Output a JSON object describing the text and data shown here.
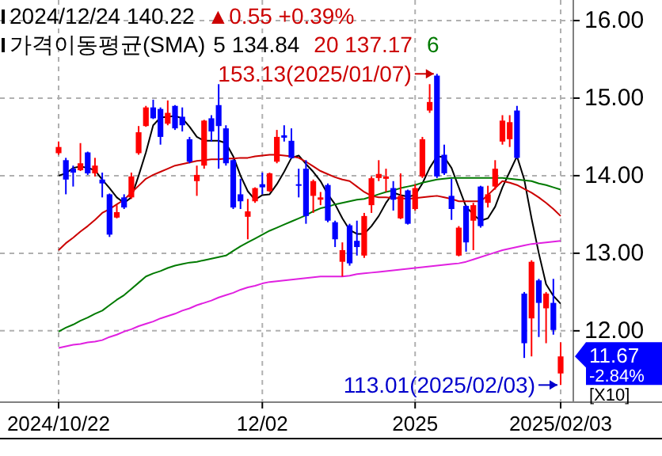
{
  "chart_data": {
    "type": "candlestick",
    "categories": [
      "2024/10/22",
      null,
      null,
      null,
      null,
      null,
      null,
      null,
      null,
      null,
      null,
      null,
      null,
      null,
      null,
      null,
      null,
      null,
      null,
      null,
      null,
      null,
      null,
      null,
      null,
      null,
      null,
      null,
      "12/02",
      null,
      null,
      null,
      null,
      null,
      null,
      null,
      null,
      null,
      null,
      null,
      null,
      null,
      null,
      null,
      null,
      null,
      null,
      null,
      null,
      "2025",
      null,
      null,
      null,
      null,
      null,
      null,
      null,
      null,
      null,
      null,
      null,
      null,
      null,
      null,
      null,
      null,
      null,
      null,
      null,
      "2025/02/03"
    ],
    "ohlc": [
      [
        14.29,
        14.44,
        14.27,
        14.37
      ],
      [
        14.2,
        14.23,
        13.76,
        13.95
      ],
      [
        14.09,
        14.13,
        13.86,
        14.04
      ],
      [
        14.07,
        14.42,
        14.06,
        14.16
      ],
      [
        14.3,
        14.31,
        14.01,
        14.03
      ],
      [
        14.03,
        14.23,
        13.99,
        14.13
      ],
      [
        13.95,
        14.04,
        13.72,
        13.9
      ],
      [
        13.76,
        13.77,
        13.21,
        13.24
      ],
      [
        13.46,
        13.62,
        13.45,
        13.53
      ],
      [
        13.72,
        13.76,
        13.57,
        13.59
      ],
      [
        13.72,
        14.04,
        13.7,
        13.99
      ],
      [
        14.29,
        14.64,
        14.27,
        14.56
      ],
      [
        14.64,
        14.9,
        14.63,
        14.88
      ],
      [
        14.88,
        14.98,
        14.73,
        14.74
      ],
      [
        14.86,
        14.88,
        14.4,
        14.5
      ],
      [
        14.67,
        14.97,
        14.65,
        14.81
      ],
      [
        14.9,
        14.91,
        14.59,
        14.61
      ],
      [
        14.76,
        14.88,
        14.57,
        14.65
      ],
      [
        14.47,
        14.5,
        14.16,
        14.18
      ],
      [
        13.93,
        14.13,
        13.74,
        14.01
      ],
      [
        14.13,
        14.72,
        14.09,
        14.71
      ],
      [
        14.74,
        14.78,
        14.44,
        14.57
      ],
      [
        14.91,
        15.18,
        14.09,
        14.64
      ],
      [
        14.61,
        14.65,
        14.13,
        14.16
      ],
      [
        14.2,
        14.21,
        13.57,
        13.59
      ],
      [
        13.76,
        13.96,
        13.57,
        13.67
      ],
      [
        13.47,
        13.7,
        13.18,
        13.54
      ],
      [
        13.67,
        13.85,
        13.65,
        13.84
      ],
      [
        13.89,
        14.04,
        13.76,
        13.85
      ],
      [
        13.8,
        14.04,
        13.79,
        14.03
      ],
      [
        14.18,
        14.59,
        14.16,
        14.5
      ],
      [
        14.52,
        14.65,
        14.44,
        14.49
      ],
      [
        14.45,
        14.61,
        14.22,
        14.23
      ],
      [
        13.89,
        14.09,
        13.72,
        13.87
      ],
      [
        14.09,
        14.2,
        13.38,
        13.48
      ],
      [
        13.74,
        13.95,
        13.52,
        13.93
      ],
      [
        13.69,
        13.79,
        13.62,
        13.72
      ],
      [
        13.88,
        13.9,
        13.4,
        13.42
      ],
      [
        13.4,
        13.42,
        13.08,
        13.18
      ],
      [
        12.89,
        13.14,
        12.7,
        13.04
      ],
      [
        13.36,
        13.38,
        12.84,
        12.87
      ],
      [
        13.16,
        13.42,
        12.97,
        13.08
      ],
      [
        12.97,
        13.52,
        12.94,
        13.48
      ],
      [
        13.62,
        13.99,
        13.52,
        13.967
      ],
      [
        13.97,
        14.2,
        13.93,
        14.022
      ],
      [
        13.96,
        14.09,
        13.79,
        13.99
      ],
      [
        13.84,
        13.93,
        13.55,
        13.69
      ],
      [
        13.45,
        14.03,
        13.44,
        13.74
      ],
      [
        13.81,
        13.82,
        13.37,
        13.38
      ],
      [
        13.57,
        13.89,
        13.55,
        13.84
      ],
      [
        13.99,
        14.5,
        13.97,
        14.47
      ],
      [
        14.84,
        15.18,
        14.81,
        14.95
      ],
      [
        15.29,
        15.313,
        13.97,
        13.99
      ],
      [
        14.27,
        14.4,
        14.01,
        14.03
      ],
      [
        13.74,
        13.96,
        13.43,
        13.57
      ],
      [
        12.97,
        13.35,
        12.96,
        13.33
      ],
      [
        13.61,
        13.62,
        13.02,
        13.14
      ],
      [
        13.42,
        13.65,
        13.04,
        13.62
      ],
      [
        13.86,
        13.87,
        13.33,
        13.35
      ],
      [
        13.65,
        13.87,
        13.59,
        13.76
      ],
      [
        13.86,
        14.2,
        13.82,
        14.09
      ],
      [
        14.44,
        14.78,
        14.4,
        14.71
      ],
      [
        14.47,
        14.78,
        14.37,
        14.69
      ],
      [
        14.84,
        14.9,
        14.22,
        14.23
      ],
      [
        12.48,
        12.5,
        11.65,
        11.84
      ],
      [
        12.16,
        12.91,
        11.67,
        12.89
      ],
      [
        12.65,
        12.67,
        11.92,
        12.36
      ],
      [
        12.29,
        12.5,
        11.84,
        12.48
      ],
      [
        12.36,
        12.67,
        11.95,
        12.011
      ],
      [
        11.45,
        11.85,
        11.301,
        11.67
      ]
    ],
    "colors": [
      "#ff0000",
      "#0000ff",
      "#0000ff",
      "#ff0000",
      "#0000ff",
      "#ff0000",
      "#0000ff",
      "#0000ff",
      "#ff0000",
      "#0000ff",
      "#ff0000",
      "#ff0000",
      "#ff0000",
      "#0000ff",
      "#0000ff",
      "#ff0000",
      "#0000ff",
      "#0000ff",
      "#0000ff",
      "#ff0000",
      "#ff0000",
      "#0000ff",
      "#0000ff",
      "#0000ff",
      "#0000ff",
      "#0000ff",
      "#ff0000",
      "#ff0000",
      "#0000ff",
      "#ff0000",
      "#ff0000",
      "#0000ff",
      "#0000ff",
      "#0000ff",
      "#0000ff",
      "#ff0000",
      "#ff0000",
      "#0000ff",
      "#0000ff",
      "#ff0000",
      "#0000ff",
      "#0000ff",
      "#ff0000",
      "#ff0000",
      "#ff0000",
      "#ff0000",
      "#0000ff",
      "#ff0000",
      "#0000ff",
      "#ff0000",
      "#ff0000",
      "#ff0000",
      "#0000ff",
      "#0000ff",
      "#0000ff",
      "#ff0000",
      "#0000ff",
      "#ff0000",
      "#0000ff",
      "#ff0000",
      "#ff0000",
      "#ff0000",
      "#ff0000",
      "#0000ff",
      "#0000ff",
      "#ff0000",
      "#0000ff",
      "#ff0000",
      "#0000ff",
      "#ff0000"
    ],
    "series": [
      {
        "type": "line",
        "name": "5 134.84",
        "color": "#000000",
        "values": [
          14.0,
          14.03,
          14.1,
          14.12,
          14.1,
          14.07,
          13.95,
          13.84,
          13.72,
          13.65,
          13.72,
          14.0,
          14.3,
          14.65,
          14.75,
          14.76,
          14.77,
          14.74,
          14.63,
          14.5,
          14.45,
          14.45,
          14.45,
          14.42,
          14.25,
          14.0,
          13.8,
          13.69,
          13.75,
          13.76,
          13.89,
          14.05,
          14.23,
          14.26,
          14.15,
          14.05,
          13.93,
          13.76,
          13.63,
          13.45,
          13.3,
          13.25,
          13.25,
          13.35,
          13.48,
          13.65,
          13.78,
          13.75,
          13.73,
          13.75,
          13.9,
          14.1,
          14.25,
          14.24,
          14.1,
          13.85,
          13.6,
          13.5,
          13.42,
          13.45,
          13.6,
          13.85,
          14.05,
          14.25,
          13.95,
          13.45,
          13.0,
          12.6,
          12.45,
          12.35
        ]
      },
      {
        "type": "line",
        "name": "20 137.17",
        "color": "#cc0000",
        "values": [
          13.04,
          13.13,
          13.2,
          13.28,
          13.35,
          13.43,
          13.52,
          13.57,
          13.63,
          13.69,
          13.78,
          13.87,
          13.96,
          14.01,
          14.05,
          14.09,
          14.13,
          14.15,
          14.17,
          14.19,
          14.2,
          14.21,
          14.21,
          14.22,
          14.22,
          14.23,
          14.23,
          14.25,
          14.26,
          14.27,
          14.27,
          14.26,
          14.25,
          14.23,
          14.18,
          14.12,
          14.06,
          14.02,
          13.98,
          13.95,
          13.93,
          13.86,
          13.79,
          13.74,
          13.72,
          13.72,
          13.71,
          13.71,
          13.7,
          13.71,
          13.72,
          13.73,
          13.74,
          13.72,
          13.7,
          13.67,
          13.67,
          13.67,
          13.67,
          13.75,
          13.84,
          13.93,
          13.91,
          13.88,
          13.83,
          13.78,
          13.72,
          13.65,
          13.57,
          13.48
        ]
      },
      {
        "type": "line",
        "name": "6",
        "color": "#007a00",
        "values": [
          11.99,
          12.04,
          12.08,
          12.13,
          12.17,
          12.22,
          12.26,
          12.33,
          12.4,
          12.46,
          12.54,
          12.62,
          12.7,
          12.74,
          12.77,
          12.81,
          12.84,
          12.86,
          12.88,
          12.89,
          12.91,
          12.93,
          12.95,
          12.97,
          13.03,
          13.09,
          13.14,
          13.19,
          13.24,
          13.29,
          13.33,
          13.37,
          13.41,
          13.45,
          13.49,
          13.54,
          13.58,
          13.6,
          13.63,
          13.65,
          13.67,
          13.69,
          13.7,
          13.73,
          13.76,
          13.79,
          13.81,
          13.84,
          13.86,
          13.88,
          13.91,
          13.93,
          13.95,
          13.96,
          13.97,
          13.97,
          13.97,
          13.97,
          13.97,
          13.97,
          13.97,
          13.97,
          13.96,
          13.95,
          13.94,
          13.93,
          13.9,
          13.88,
          13.85,
          13.82
        ]
      },
      {
        "type": "line",
        "color": "#e020e0",
        "values": [
          11.78,
          11.8,
          11.82,
          11.83,
          11.85,
          11.86,
          11.88,
          11.92,
          11.95,
          11.99,
          12.02,
          12.06,
          12.09,
          12.12,
          12.16,
          12.19,
          12.22,
          12.26,
          12.29,
          12.33,
          12.36,
          12.39,
          12.43,
          12.46,
          12.49,
          12.53,
          12.56,
          12.58,
          12.61,
          12.63,
          12.64,
          12.65,
          12.66,
          12.67,
          12.68,
          12.69,
          12.7,
          12.7,
          12.7,
          12.7,
          12.71,
          12.73,
          12.74,
          12.75,
          12.76,
          12.77,
          12.78,
          12.79,
          12.8,
          12.81,
          12.82,
          12.83,
          12.84,
          12.85,
          12.86,
          12.87,
          12.89,
          12.92,
          12.95,
          12.98,
          13.01,
          13.04,
          13.06,
          13.08,
          13.1,
          13.12,
          13.13,
          13.14,
          13.15,
          13.16
        ]
      }
    ],
    "legend_title": "가격이동평균(SMA)",
    "legend": "top left",
    "ylim": [
      11.08,
      16.265
    ],
    "yticks": [
      {
        "value": 12,
        "label": "12.00"
      },
      {
        "value": 13,
        "label": "13.00"
      },
      {
        "value": 14,
        "label": "14.00"
      },
      {
        "value": 15,
        "label": "15.00"
      },
      {
        "value": 16,
        "label": "16.00"
      }
    ],
    "grid": true,
    "annotations": [
      "2024/12/24  140.22",
      "▲0.55 +0.39%",
      "153.13(2025/01/07)",
      {
        "text": "113.01(2025/02/03)",
        "x": "2025/02/03",
        "y": 11.301
      },
      "11.67",
      "-2.84%",
      "[X10]"
    ]
  }
}
